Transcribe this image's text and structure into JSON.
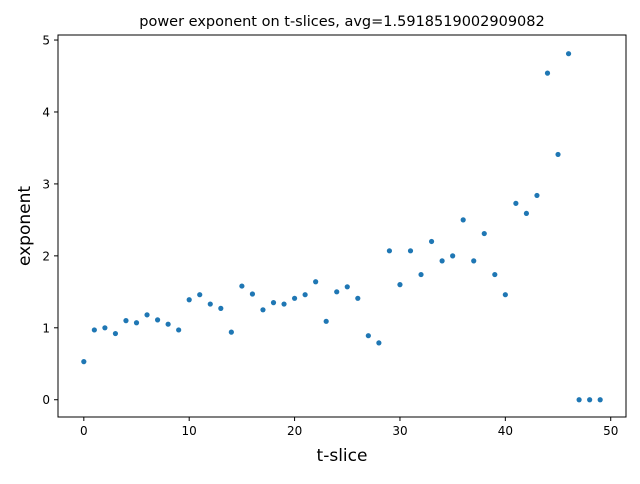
{
  "chart_data": {
    "type": "scatter",
    "title": "power exponent on t-slices, avg=1.5918519002909082",
    "xlabel": "t-slice",
    "ylabel": "exponent",
    "xlim": [
      -2.45,
      51.45
    ],
    "ylim": [
      -0.24,
      5.07
    ],
    "xticks": [
      0,
      10,
      20,
      30,
      40,
      50
    ],
    "yticks": [
      0,
      1,
      2,
      3,
      4,
      5
    ],
    "grid": false,
    "legend": "none",
    "marker_color": "#1f77b4",
    "series": [
      {
        "x": [
          0,
          1,
          2,
          3,
          4,
          5,
          6,
          7,
          8,
          9,
          10,
          11,
          12,
          13,
          14,
          15,
          16,
          17,
          18,
          19,
          20,
          21,
          22,
          23,
          24,
          25,
          26,
          27,
          28,
          29,
          30,
          31,
          32,
          33,
          34,
          35,
          36,
          37,
          38,
          39,
          40,
          41,
          42,
          43,
          44,
          45,
          46,
          47,
          48,
          49
        ],
        "values": [
          0.53,
          0.97,
          1.0,
          0.92,
          1.1,
          1.07,
          1.18,
          1.11,
          1.05,
          0.97,
          1.39,
          1.46,
          1.33,
          1.27,
          0.94,
          1.58,
          1.47,
          1.25,
          1.35,
          1.33,
          1.41,
          1.46,
          1.64,
          1.09,
          1.5,
          1.57,
          1.41,
          0.89,
          0.79,
          2.07,
          1.6,
          2.07,
          1.74,
          2.2,
          1.93,
          2.0,
          2.5,
          1.93,
          2.31,
          1.74,
          1.46,
          2.73,
          2.59,
          2.84,
          4.54,
          3.41,
          4.81,
          0.0,
          0.0,
          0.0
        ]
      }
    ]
  }
}
